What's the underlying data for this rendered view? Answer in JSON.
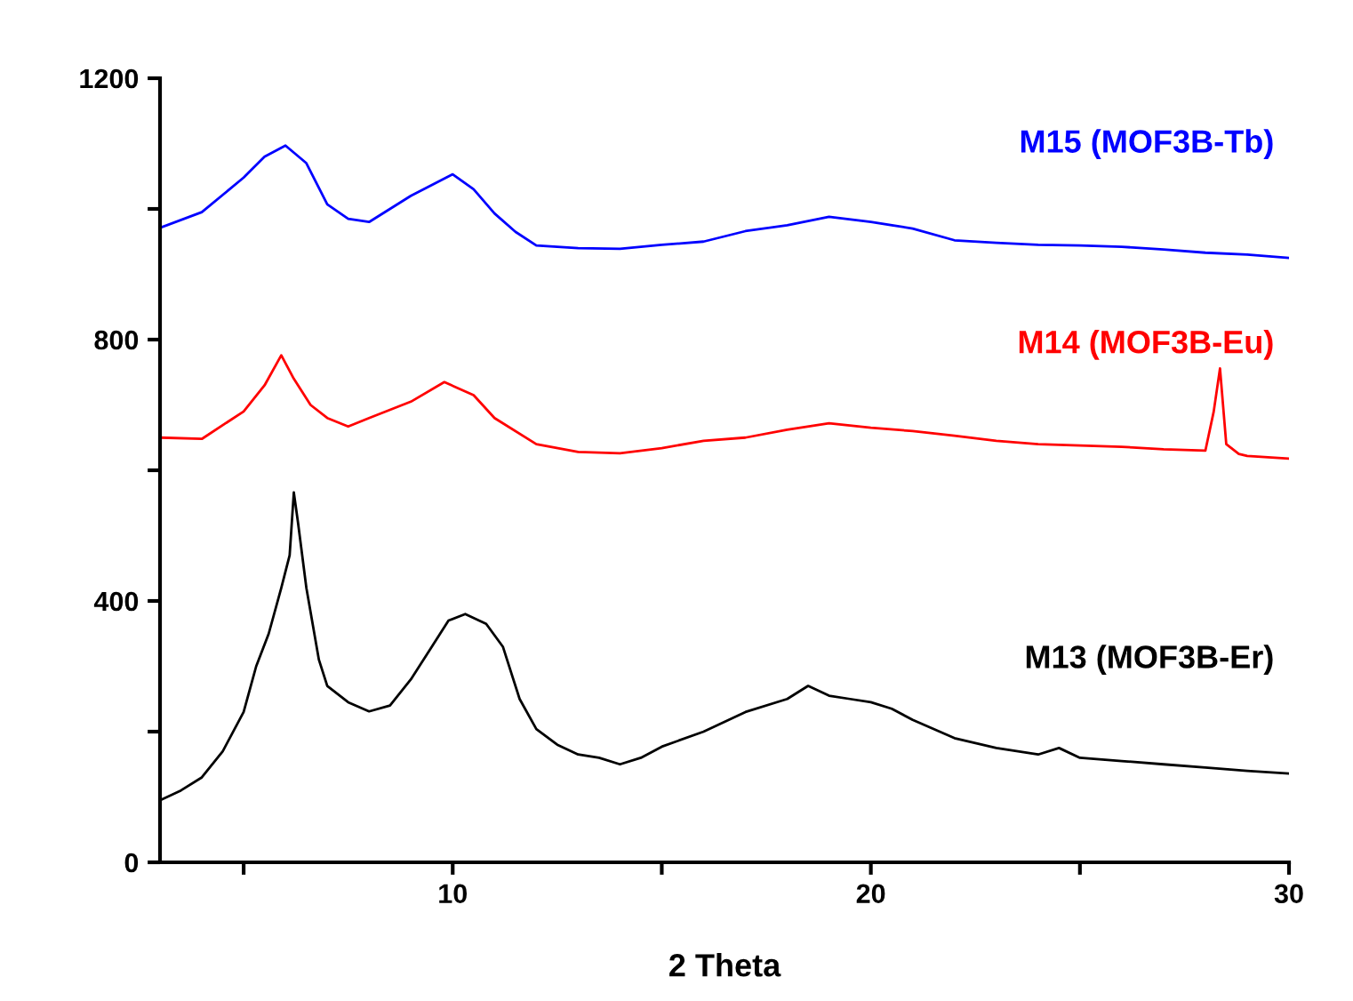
{
  "chart_data": {
    "type": "line",
    "xlabel": "2 Theta",
    "xlim": [
      3,
      30
    ],
    "ylim": [
      0,
      1200
    ],
    "xticks": [
      {
        "value": 5,
        "label": null
      },
      10,
      {
        "value": 15,
        "label": null
      },
      20,
      {
        "value": 25,
        "label": null
      },
      30
    ],
    "yticks": [
      0,
      {
        "value": 200,
        "label": null
      },
      400,
      {
        "value": 600,
        "label": null
      },
      800,
      {
        "value": 1000,
        "label": null
      },
      1200
    ],
    "grid": false,
    "legend": false,
    "marker": "none",
    "line_style": "solid",
    "series": [
      {
        "name": "M13 (MOF3B-Er)",
        "color": "#000000",
        "x": [
          3,
          3.5,
          4,
          4.5,
          5,
          5.3,
          5.6,
          5.9,
          6.1,
          6.2,
          6.3,
          6.5,
          6.8,
          7,
          7.5,
          8,
          8.5,
          9,
          9.5,
          9.9,
          10.3,
          10.8,
          11.2,
          11.6,
          12,
          12.5,
          13,
          13.5,
          14,
          14.5,
          15,
          16,
          17,
          18,
          18.5,
          19,
          19.5,
          20,
          20.5,
          21,
          22,
          23,
          24,
          24.5,
          25,
          26,
          27,
          28,
          29,
          30
        ],
        "values": [
          95,
          110,
          130,
          170,
          230,
          300,
          350,
          420,
          470,
          566,
          520,
          420,
          310,
          270,
          245,
          231,
          240,
          280,
          330,
          370,
          380,
          365,
          330,
          250,
          204,
          180,
          165,
          160,
          150,
          160,
          177,
          200,
          230,
          250,
          270,
          255,
          250,
          245,
          235,
          218,
          190,
          175,
          165,
          175,
          160,
          155,
          150,
          145,
          140,
          136
        ]
      },
      {
        "name": "M14 (MOF3B-Eu)",
        "color": "#ff0000",
        "x": [
          3,
          4,
          5,
          5.5,
          5.9,
          6.2,
          6.6,
          7,
          7.5,
          8,
          9,
          9.8,
          10.5,
          11,
          12,
          13,
          14,
          15,
          16,
          17,
          18,
          19,
          20,
          21,
          22,
          23,
          24,
          25,
          26,
          27,
          28,
          28.2,
          28.35,
          28.5,
          28.8,
          29,
          30
        ],
        "values": [
          650,
          648,
          690,
          730,
          776,
          740,
          700,
          680,
          667,
          680,
          705,
          735,
          715,
          680,
          640,
          628,
          626,
          634,
          645,
          650,
          662,
          672,
          665,
          660,
          653,
          645,
          640,
          638,
          636,
          632,
          630,
          690,
          756,
          640,
          625,
          622,
          618
        ]
      },
      {
        "name": "M15 (MOF3B-Tb)",
        "color": "#0000ff",
        "x": [
          3,
          4,
          5,
          5.5,
          6,
          6.5,
          7,
          7.5,
          8,
          9,
          10,
          10.5,
          11,
          11.5,
          12,
          13,
          14,
          15,
          16,
          17,
          18,
          19,
          20,
          21,
          22,
          23,
          24,
          25,
          26,
          27,
          28,
          29,
          30
        ],
        "values": [
          971,
          995,
          1048,
          1080,
          1097,
          1070,
          1007,
          985,
          980,
          1020,
          1053,
          1030,
          993,
          965,
          944,
          940,
          939,
          945,
          950,
          966,
          975,
          988,
          980,
          970,
          952,
          948,
          945,
          944,
          942,
          938,
          933,
          930,
          925
        ]
      }
    ]
  }
}
